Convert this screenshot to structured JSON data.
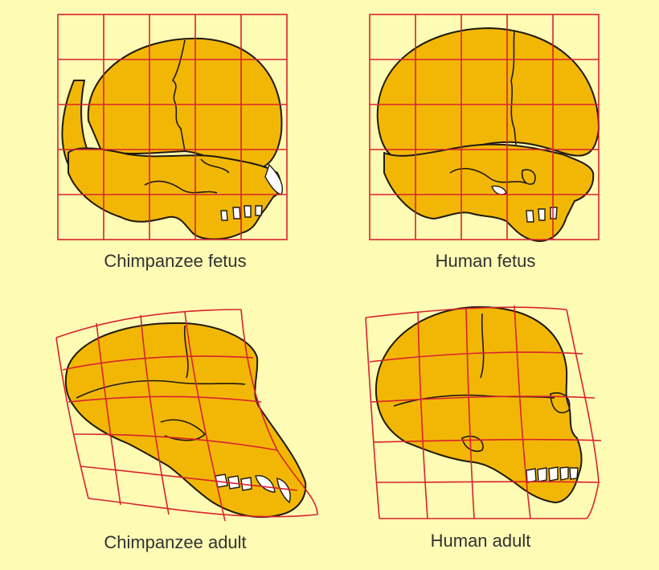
{
  "panels": [
    {
      "id": "chimp-fetus",
      "caption": "Chimpanzee fetus"
    },
    {
      "id": "human-fetus",
      "caption": "Human fetus"
    },
    {
      "id": "chimp-adult",
      "caption": "Chimpanzee adult"
    },
    {
      "id": "human-adult",
      "caption": "Human adult"
    }
  ],
  "colors": {
    "background": "#fdfbb4",
    "bone": "#f2b705",
    "grid": "#d9232e",
    "outline": "#1f1a10"
  }
}
